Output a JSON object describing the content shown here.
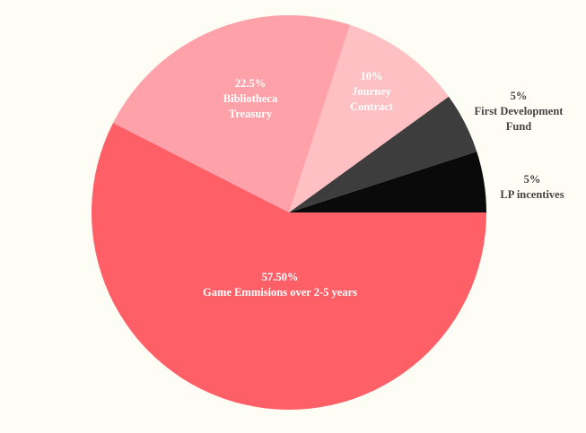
{
  "chart_data": {
    "type": "pie",
    "title": "",
    "background": "#fefdf5",
    "start_angle_deg": 0,
    "direction": "counterclockwise",
    "slices": [
      {
        "key": "lp",
        "value": 5,
        "color": "#0a0a0a",
        "label_color": "#444444",
        "label_lines": [
          "5%",
          "LP incentives"
        ]
      },
      {
        "key": "fdf",
        "value": 5,
        "color": "#3d3d3d",
        "label_color": "#444444",
        "label_lines": [
          "5%",
          "First Development",
          "Fund"
        ]
      },
      {
        "key": "journey",
        "value": 10,
        "color": "#ffc0c4",
        "label_color": "#ffffff",
        "label_lines": [
          "10%",
          "Journey",
          "Contract"
        ]
      },
      {
        "key": "bibliotheca",
        "value": 22.5,
        "color": "#ffa1a8",
        "label_color": "#ffffff",
        "label_lines": [
          "22.5%",
          "Bibliotheca",
          "Treasury"
        ]
      },
      {
        "key": "game",
        "value": 57.5,
        "color": "#ff6068",
        "label_color": "#ffffff",
        "label_lines": [
          "57.50%",
          "Game Emmisions over 2-5 years"
        ]
      }
    ]
  }
}
